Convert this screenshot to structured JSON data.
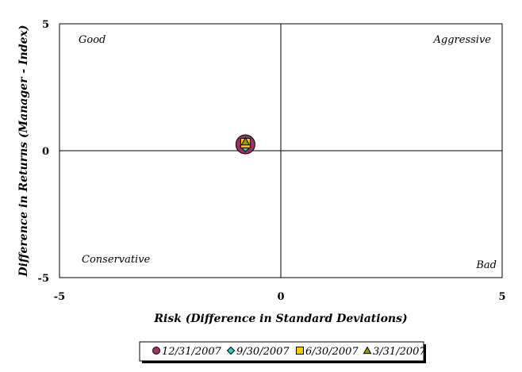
{
  "chart_data": {
    "type": "scatter",
    "xlabel": "Risk (Difference in Standard Deviations)",
    "ylabel": "Difference in Returns (Manager - Index)",
    "xlim": [
      -5,
      5
    ],
    "ylim": [
      -5,
      5
    ],
    "x_ticks": [
      "-5",
      "0",
      "5"
    ],
    "y_ticks": [
      "5",
      "0",
      "-5"
    ],
    "grid": false,
    "reference_lines": {
      "x": 0,
      "y": 0
    },
    "quadrant_labels": {
      "top_left": "Good",
      "top_right": "Aggressive",
      "bottom_left": "Conservative",
      "bottom_right": "Bad"
    },
    "legend_position": "bottom",
    "series": [
      {
        "name": "12/31/2007",
        "marker": "circle",
        "color": "#993366",
        "x": -0.8,
        "y": 0.25
      },
      {
        "name": "9/30/2007",
        "marker": "diamond",
        "color": "#33cccc",
        "x": -0.8,
        "y": 0.15
      },
      {
        "name": "6/30/2007",
        "marker": "square",
        "color": "#ffcc00",
        "x": -0.8,
        "y": 0.3
      },
      {
        "name": "3/31/2007",
        "marker": "triangle",
        "color": "#999900",
        "x": -0.8,
        "y": 0.35
      }
    ]
  }
}
